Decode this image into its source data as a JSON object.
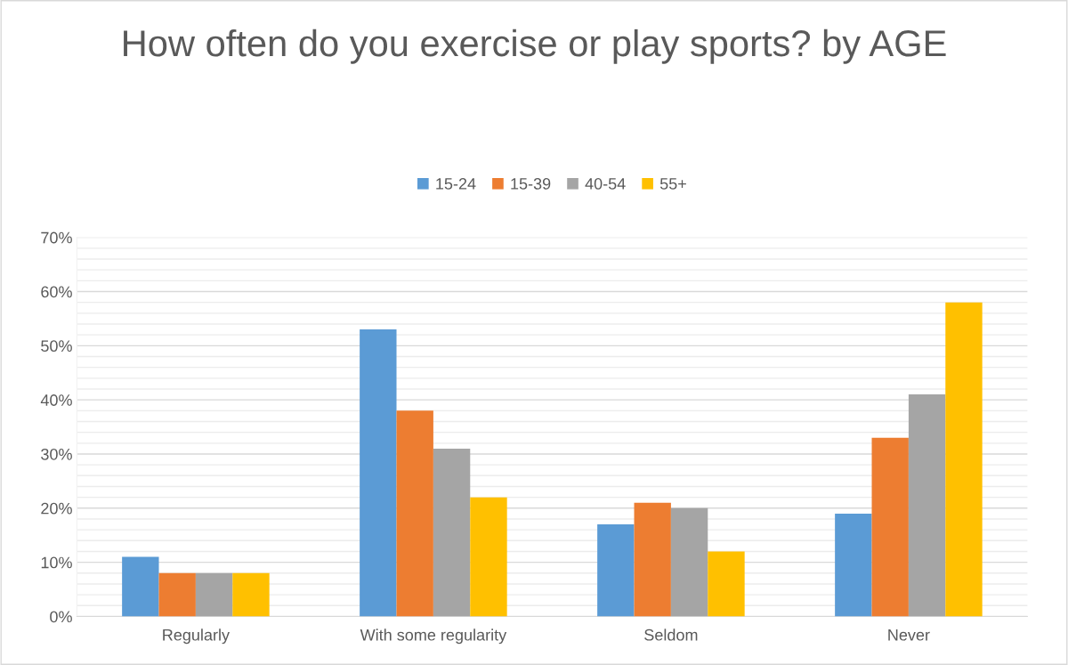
{
  "chart_data": {
    "type": "bar",
    "title": "How often do you exercise or play sports? by AGE",
    "categories": [
      "Regularly",
      "With some regularity",
      "Seldom",
      "Never"
    ],
    "series": [
      {
        "name": "15-24",
        "color": "#5b9bd5",
        "values": [
          11,
          53,
          17,
          19
        ]
      },
      {
        "name": "15-39",
        "color": "#ed7d31",
        "values": [
          8,
          38,
          21,
          33
        ]
      },
      {
        "name": "40-54",
        "color": "#a5a5a5",
        "values": [
          8,
          31,
          20,
          41
        ]
      },
      {
        "name": "55+",
        "color": "#ffc000",
        "values": [
          8,
          22,
          12,
          58
        ]
      }
    ],
    "ylim": [
      0,
      70
    ],
    "yticks": [
      {
        "value": 0,
        "label": "0%"
      },
      {
        "value": 10,
        "label": "10%"
      },
      {
        "value": 20,
        "label": "20%"
      },
      {
        "value": 30,
        "label": "30%"
      },
      {
        "value": 40,
        "label": "40%"
      },
      {
        "value": 50,
        "label": "50%"
      },
      {
        "value": 60,
        "label": "60%"
      },
      {
        "value": 70,
        "label": "70%"
      }
    ],
    "grid": "y",
    "legend": "top"
  }
}
